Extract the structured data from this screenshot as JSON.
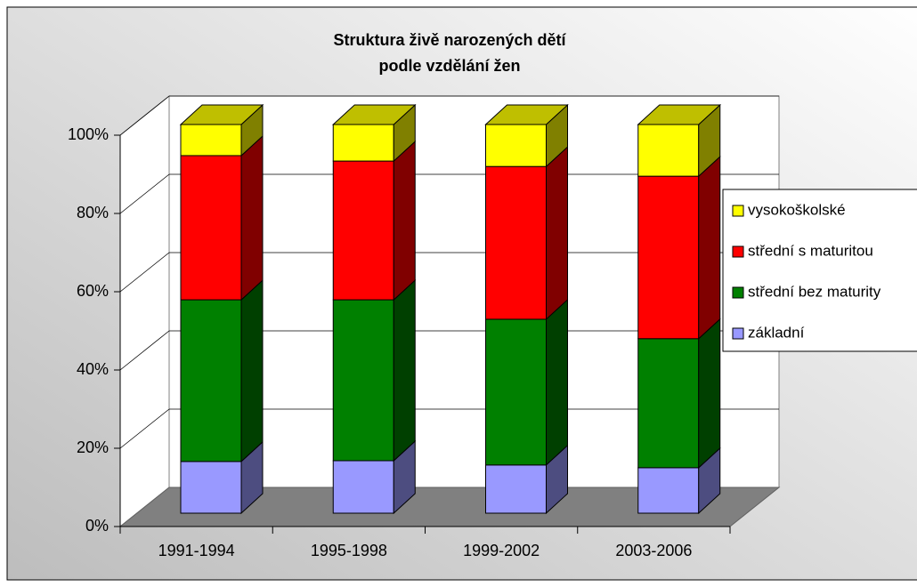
{
  "chart_data": {
    "type": "bar3d_stacked",
    "title": [
      "Struktura živě narozených dětí",
      "podle vzdělání žen"
    ],
    "categories": [
      "1991-1994",
      "1995-1998",
      "1999-2002",
      "2003-2006"
    ],
    "series": [
      {
        "name": "základní",
        "color": "#9999ff",
        "values": [
          13.3,
          13.5,
          12.4,
          11.7
        ]
      },
      {
        "name": "střední bez maturity",
        "color": "#008000",
        "values": [
          41.6,
          41.4,
          37.5,
          33.2
        ]
      },
      {
        "name": "střední s maturitou",
        "color": "#ff0000",
        "values": [
          37.1,
          35.7,
          39.3,
          41.8
        ]
      },
      {
        "name": "vysokoškolské",
        "color": "#ffff00",
        "values": [
          8.0,
          9.4,
          10.8,
          13.3
        ]
      }
    ],
    "ylim": [
      0,
      100
    ],
    "yticks": [
      {
        "value": 0,
        "label": "0%"
      },
      {
        "value": 20,
        "label": "20%"
      },
      {
        "value": 40,
        "label": "40%"
      },
      {
        "value": 60,
        "label": "60%"
      },
      {
        "value": 80,
        "label": "80%"
      },
      {
        "value": 100,
        "label": "100%"
      }
    ],
    "grid": true,
    "legend": "right"
  }
}
